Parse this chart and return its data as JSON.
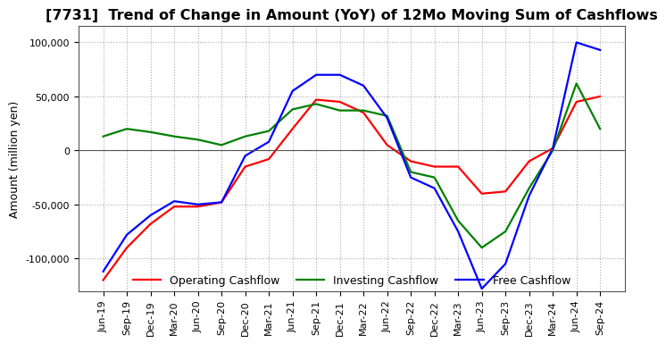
{
  "title": "[7731]  Trend of Change in Amount (YoY) of 12Mo Moving Sum of Cashflows",
  "ylabel": "Amount (million yen)",
  "title_fontsize": 11.5,
  "label_fontsize": 9,
  "tick_fontsize": 8,
  "legend_fontsize": 9,
  "ylim": [
    -130000,
    115000
  ],
  "yticks": [
    -100000,
    -50000,
    0,
    50000,
    100000
  ],
  "x_labels": [
    "Jun-19",
    "Sep-19",
    "Dec-19",
    "Mar-20",
    "Jun-20",
    "Sep-20",
    "Dec-20",
    "Mar-21",
    "Jun-21",
    "Sep-21",
    "Dec-21",
    "Mar-22",
    "Jun-22",
    "Sep-22",
    "Dec-22",
    "Mar-23",
    "Jun-23",
    "Sep-23",
    "Dec-23",
    "Mar-24",
    "Jun-24",
    "Sep-24"
  ],
  "operating": [
    -120000,
    -90000,
    -68000,
    -52000,
    -52000,
    -48000,
    -15000,
    -8000,
    20000,
    47000,
    45000,
    35000,
    5000,
    -10000,
    -15000,
    -15000,
    -40000,
    -38000,
    -10000,
    2000,
    45000,
    50000
  ],
  "investing": [
    13000,
    20000,
    17000,
    13000,
    10000,
    5000,
    13000,
    18000,
    38000,
    43000,
    37000,
    37000,
    32000,
    -20000,
    -25000,
    -65000,
    -90000,
    -75000,
    -35000,
    0,
    62000,
    20000
  ],
  "free": [
    -112000,
    -78000,
    -60000,
    -47000,
    -50000,
    -48000,
    -5000,
    8000,
    55000,
    70000,
    70000,
    60000,
    30000,
    -25000,
    -35000,
    -75000,
    -128000,
    -105000,
    -42000,
    2000,
    100000,
    93000
  ],
  "operating_color": "#ff0000",
  "investing_color": "#008000",
  "free_color": "#0000ff",
  "bg_color": "#ffffff",
  "grid_color": "#aaaaaa"
}
